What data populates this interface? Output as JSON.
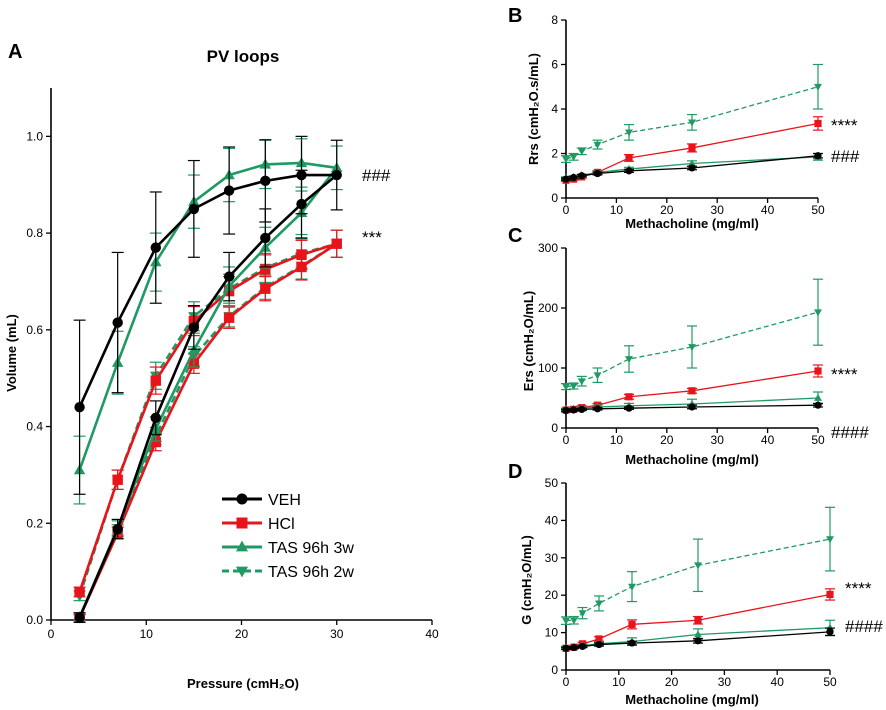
{
  "colors": {
    "veh": "#000000",
    "hcl": "#e8141b",
    "tas3w": "#1f9a63",
    "tas2w": "#1f9a63"
  },
  "chart_data": [
    {
      "panel": "A",
      "type": "line",
      "title": "PV loops",
      "xlabel": "Pressure (cmH₂O)",
      "ylabel": "Volume (mL)",
      "xlim": [
        0,
        40
      ],
      "ylim": [
        0,
        1.1
      ],
      "xticks": [
        0,
        10,
        20,
        30,
        40
      ],
      "yticks": [
        0.0,
        0.2,
        0.4,
        0.6,
        0.8,
        1.0
      ],
      "ytick_labels": [
        "0.0",
        "0.2",
        "0.4",
        "0.6",
        "0.8",
        "1.0"
      ],
      "annotations": [
        {
          "text": "###",
          "x": 32.5,
          "y": 0.92
        },
        {
          "text": "***",
          "x": 32.5,
          "y": 0.78
        }
      ],
      "series": [
        {
          "name": "VEH",
          "key": "veh",
          "marker": "circle",
          "dash": false,
          "x": [
            3,
            7,
            11,
            15,
            18.7,
            22.5,
            26.3,
            30,
            26.3,
            22.5,
            18.7,
            15,
            11,
            7,
            3
          ],
          "y": [
            0.44,
            0.615,
            0.77,
            0.85,
            0.888,
            0.908,
            0.92,
            0.92,
            0.86,
            0.79,
            0.71,
            0.605,
            0.418,
            0.188,
            0.005
          ],
          "err": [
            0.18,
            0.145,
            0.115,
            0.1,
            0.09,
            0.085,
            0.08,
            0.072,
            0.07,
            0.06,
            0.05,
            0.045,
            0.035,
            0.02,
            0.01
          ]
        },
        {
          "name": "HCl",
          "key": "hcl",
          "marker": "square",
          "dash": false,
          "x": [
            3,
            7,
            11,
            15,
            18.7,
            22.5,
            26.3,
            30,
            26.3,
            22.5,
            18.7,
            15,
            11,
            7,
            3
          ],
          "y": [
            0.058,
            0.29,
            0.495,
            0.618,
            0.68,
            0.725,
            0.755,
            0.778,
            0.73,
            0.685,
            0.625,
            0.53,
            0.368,
            0.18,
            0.005
          ],
          "err": [
            0.01,
            0.02,
            0.028,
            0.03,
            0.03,
            0.03,
            0.03,
            0.028,
            0.027,
            0.025,
            0.022,
            0.02,
            0.018,
            0.012,
            0.006
          ]
        },
        {
          "name": "TAS 96h 3w",
          "key": "tas3w",
          "marker": "triangle-up",
          "dash": false,
          "x": [
            3,
            7,
            11,
            15,
            18.7,
            22.5,
            26.3,
            30,
            26.3,
            22.5,
            18.7,
            15,
            11,
            7,
            3
          ],
          "y": [
            0.31,
            0.532,
            0.74,
            0.865,
            0.92,
            0.942,
            0.945,
            0.935,
            0.842,
            0.77,
            0.69,
            0.558,
            0.395,
            0.19,
            0.006
          ],
          "err": [
            0.07,
            0.065,
            0.06,
            0.055,
            0.055,
            0.05,
            0.05,
            0.045,
            0.045,
            0.042,
            0.04,
            0.035,
            0.025,
            0.015,
            0.008
          ]
        },
        {
          "name": "TAS 96h 2w",
          "key": "tas2w",
          "marker": "triangle-down",
          "dash": true,
          "x": [
            3,
            7,
            11,
            15,
            18.7,
            22.5,
            26.3,
            30,
            26.3,
            22.5,
            18.7,
            15,
            11,
            7,
            3
          ],
          "y": [
            0.05,
            0.29,
            0.505,
            0.628,
            0.685,
            0.728,
            0.758,
            0.778,
            0.732,
            0.688,
            0.628,
            0.545,
            0.38,
            0.185,
            0.005
          ],
          "err": [
            0.01,
            0.02,
            0.028,
            0.03,
            0.03,
            0.03,
            0.03,
            0.028,
            0.027,
            0.025,
            0.022,
            0.02,
            0.018,
            0.012,
            0.006
          ]
        }
      ],
      "legend": [
        {
          "label": "VEH",
          "key": "veh",
          "marker": "circle",
          "dash": false
        },
        {
          "label": "HCl",
          "key": "hcl",
          "marker": "square",
          "dash": false
        },
        {
          "label": "TAS 96h 3w",
          "key": "tas3w",
          "marker": "triangle-up",
          "dash": false
        },
        {
          "label": "TAS 96h 2w",
          "key": "tas2w",
          "marker": "triangle-down",
          "dash": true
        }
      ]
    },
    {
      "panel": "B",
      "type": "line",
      "title": "",
      "xlabel": "Methacholine (mg/ml)",
      "ylabel": "Rrs  (cmH₂O.s/mL)",
      "xlim": [
        0,
        50
      ],
      "ylim": [
        0,
        8
      ],
      "xticks": [
        0,
        10,
        20,
        30,
        40,
        50
      ],
      "yticks": [
        0,
        2,
        4,
        6,
        8
      ],
      "ytick_labels": [
        "0",
        "2",
        "4",
        "6",
        "8"
      ],
      "annotations": [
        {
          "text": "****",
          "x": 52.5,
          "y": 3.35
        },
        {
          "text": "###",
          "x": 52.5,
          "y": 1.85
        }
      ],
      "series": [
        {
          "name": "VEH",
          "key": "veh",
          "marker": "circle",
          "dash": false,
          "x": [
            0,
            1.5,
            3.125,
            6.25,
            12.5,
            25,
            50
          ],
          "y": [
            0.85,
            0.92,
            1.0,
            1.1,
            1.22,
            1.35,
            1.9
          ],
          "err": [
            0.05,
            0.05,
            0.05,
            0.06,
            0.07,
            0.08,
            0.1
          ]
        },
        {
          "name": "HCl",
          "key": "hcl",
          "marker": "square",
          "dash": false,
          "x": [
            0,
            1.5,
            3.125,
            6.25,
            12.5,
            25,
            50
          ],
          "y": [
            0.8,
            0.85,
            0.95,
            1.15,
            1.8,
            2.25,
            3.35
          ],
          "err": [
            0.05,
            0.05,
            0.06,
            0.08,
            0.15,
            0.18,
            0.3
          ]
        },
        {
          "name": "TAS 96h 3w",
          "key": "tas3w",
          "marker": "triangle-up",
          "dash": false,
          "x": [
            0,
            1.5,
            3.125,
            6.25,
            12.5,
            25,
            50
          ],
          "y": [
            0.9,
            0.95,
            1.02,
            1.15,
            1.3,
            1.55,
            1.85
          ],
          "err": [
            0.05,
            0.05,
            0.05,
            0.06,
            0.08,
            0.12,
            0.15
          ]
        },
        {
          "name": "TAS 96h 2w",
          "key": "tas2w",
          "marker": "triangle-down",
          "dash": true,
          "x": [
            0,
            1.5,
            3.125,
            6.25,
            12.5,
            25,
            50
          ],
          "y": [
            1.75,
            1.85,
            2.1,
            2.4,
            2.95,
            3.4,
            5.0
          ],
          "err": [
            0.15,
            0.15,
            0.15,
            0.2,
            0.35,
            0.35,
            1.0
          ]
        }
      ]
    },
    {
      "panel": "C",
      "type": "line",
      "title": "",
      "xlabel": "Methacholine (mg/ml)",
      "ylabel": "Ers  (cmH₂O/mL)",
      "xlim": [
        0,
        50
      ],
      "ylim": [
        0,
        300
      ],
      "xticks": [
        0,
        10,
        20,
        30,
        40,
        50
      ],
      "yticks": [
        0,
        100,
        200,
        300
      ],
      "ytick_labels": [
        "0",
        "100",
        "200",
        "300"
      ],
      "annotations": [
        {
          "text": "****",
          "x": 52.5,
          "y": 95
        },
        {
          "text": "####",
          "x": 52.5,
          "y": 38
        }
      ],
      "series": [
        {
          "name": "VEH",
          "key": "veh",
          "marker": "circle",
          "dash": false,
          "x": [
            0,
            1.5,
            3.125,
            6.25,
            12.5,
            25,
            50
          ],
          "y": [
            29,
            30,
            31,
            32,
            33,
            35,
            38
          ],
          "err": [
            2,
            2,
            2,
            2,
            2,
            3,
            3
          ]
        },
        {
          "name": "HCl",
          "key": "hcl",
          "marker": "square",
          "dash": false,
          "x": [
            0,
            1.5,
            3.125,
            6.25,
            12.5,
            25,
            50
          ],
          "y": [
            30,
            31,
            34,
            38,
            52,
            62,
            95
          ],
          "err": [
            2,
            2,
            3,
            3,
            4,
            4,
            10
          ]
        },
        {
          "name": "TAS 96h 3w",
          "key": "tas3w",
          "marker": "triangle-up",
          "dash": false,
          "x": [
            0,
            1.5,
            3.125,
            6.25,
            12.5,
            25,
            50
          ],
          "y": [
            31,
            32,
            33,
            35,
            37,
            40,
            50
          ],
          "err": [
            2,
            2,
            2,
            3,
            4,
            8,
            10
          ]
        },
        {
          "name": "TAS 96h 2w",
          "key": "tas2w",
          "marker": "triangle-down",
          "dash": true,
          "x": [
            0,
            1.5,
            3.125,
            6.25,
            12.5,
            25,
            50
          ],
          "y": [
            69,
            70,
            78,
            88,
            115,
            135,
            193
          ],
          "err": [
            5,
            5,
            8,
            12,
            22,
            35,
            55
          ]
        }
      ]
    },
    {
      "panel": "D",
      "type": "line",
      "title": "",
      "xlabel": "Methacholine (mg/ml)",
      "ylabel": "G  (cmH₂O/mL)",
      "xlim": [
        0,
        50
      ],
      "ylim": [
        0,
        50
      ],
      "xticks": [
        0,
        10,
        20,
        30,
        40,
        50
      ],
      "yticks": [
        0,
        10,
        20,
        30,
        40,
        50
      ],
      "ytick_labels": [
        "0",
        "10",
        "20",
        "30",
        "40",
        "50"
      ],
      "annotations": [
        {
          "text": "****",
          "x": 52.5,
          "y": 20.5
        },
        {
          "text": "####",
          "x": 52.5,
          "y": 10.5
        }
      ],
      "series": [
        {
          "name": "VEH",
          "key": "veh",
          "marker": "circle",
          "dash": false,
          "x": [
            0,
            1.5,
            3.125,
            6.25,
            12.5,
            25,
            50
          ],
          "y": [
            5.8,
            6,
            6.3,
            6.8,
            7.2,
            7.8,
            10.2
          ],
          "err": [
            0.3,
            0.3,
            0.3,
            0.4,
            0.5,
            0.6,
            1.0
          ]
        },
        {
          "name": "HCl",
          "key": "hcl",
          "marker": "square",
          "dash": false,
          "x": [
            0,
            1.5,
            3.125,
            6.25,
            12.5,
            25,
            50
          ],
          "y": [
            5.8,
            6.1,
            7.0,
            8.3,
            12.2,
            13.3,
            20.2
          ],
          "err": [
            0.3,
            0.3,
            0.4,
            0.6,
            1.2,
            1.0,
            1.5
          ]
        },
        {
          "name": "TAS 96h 3w",
          "key": "tas3w",
          "marker": "triangle-up",
          "dash": false,
          "x": [
            0,
            1.5,
            3.125,
            6.25,
            12.5,
            25,
            50
          ],
          "y": [
            6.0,
            6.2,
            6.5,
            7.0,
            7.6,
            9.5,
            11.3
          ],
          "err": [
            0.3,
            0.3,
            0.4,
            0.5,
            1.0,
            1.5,
            2.0
          ]
        },
        {
          "name": "TAS 96h 2w",
          "key": "tas2w",
          "marker": "triangle-down",
          "dash": true,
          "x": [
            0,
            1.5,
            3.125,
            6.25,
            12.5,
            25,
            50
          ],
          "y": [
            13.2,
            13.3,
            15.2,
            17.8,
            22.3,
            28.0,
            35.0
          ],
          "err": [
            1.0,
            1.0,
            1.5,
            2.0,
            4.0,
            7.0,
            8.5
          ]
        }
      ]
    }
  ]
}
